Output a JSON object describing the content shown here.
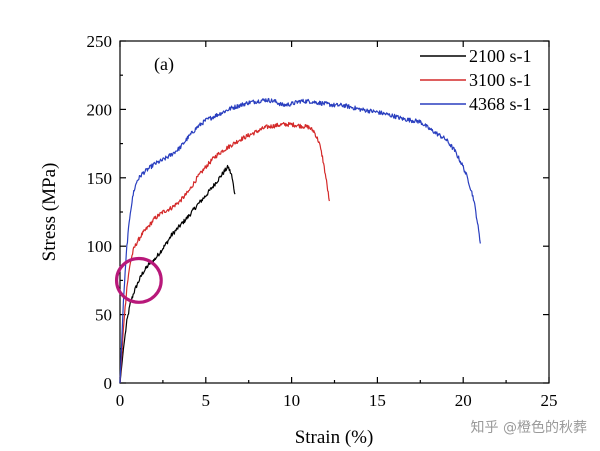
{
  "chart_data": {
    "type": "line",
    "panel_label": "(a)",
    "xlabel": "Strain (%)",
    "ylabel": "Stress (MPa)",
    "xlim": [
      0,
      25
    ],
    "ylim": [
      0,
      250
    ],
    "xticks": [
      0,
      5,
      10,
      15,
      20,
      25
    ],
    "yticks": [
      0,
      50,
      100,
      150,
      200,
      250
    ],
    "grid": false,
    "legend_position": "top-right",
    "series": [
      {
        "name": "2100 s-1",
        "color": "#000000",
        "points": [
          [
            0,
            0
          ],
          [
            0.2,
            25
          ],
          [
            0.4,
            45
          ],
          [
            0.6,
            58
          ],
          [
            0.8,
            66
          ],
          [
            1.0,
            72
          ],
          [
            1.3,
            80
          ],
          [
            1.7,
            87
          ],
          [
            2.0,
            90
          ],
          [
            2.3,
            95
          ],
          [
            2.7,
            102
          ],
          [
            3.0,
            108
          ],
          [
            3.5,
            115
          ],
          [
            4.0,
            122
          ],
          [
            4.5,
            130
          ],
          [
            5.0,
            137
          ],
          [
            5.5,
            145
          ],
          [
            5.8,
            150
          ],
          [
            6.1,
            155
          ],
          [
            6.3,
            158
          ],
          [
            6.5,
            152
          ],
          [
            6.6,
            145
          ],
          [
            6.7,
            138
          ]
        ]
      },
      {
        "name": "3100 s-1",
        "color": "#d42a2a",
        "points": [
          [
            0,
            0
          ],
          [
            0.2,
            40
          ],
          [
            0.4,
            70
          ],
          [
            0.6,
            88
          ],
          [
            0.8,
            98
          ],
          [
            1.0,
            103
          ],
          [
            1.3,
            109
          ],
          [
            1.7,
            115
          ],
          [
            2.0,
            120
          ],
          [
            2.5,
            125
          ],
          [
            3.0,
            128
          ],
          [
            3.5,
            133
          ],
          [
            4.0,
            140
          ],
          [
            4.5,
            150
          ],
          [
            5.0,
            158
          ],
          [
            5.5,
            165
          ],
          [
            6.0,
            170
          ],
          [
            6.5,
            174
          ],
          [
            7.0,
            178
          ],
          [
            7.5,
            181
          ],
          [
            8.0,
            184
          ],
          [
            8.5,
            187
          ],
          [
            9.0,
            188
          ],
          [
            9.5,
            189
          ],
          [
            10.0,
            189
          ],
          [
            10.5,
            188
          ],
          [
            11.0,
            187
          ],
          [
            11.3,
            184
          ],
          [
            11.6,
            176
          ],
          [
            11.8,
            165
          ],
          [
            12.0,
            150
          ],
          [
            12.2,
            133
          ]
        ]
      },
      {
        "name": "4368 s-1",
        "color": "#2a3fbf",
        "points": [
          [
            0,
            0
          ],
          [
            0.2,
            60
          ],
          [
            0.4,
            100
          ],
          [
            0.6,
            125
          ],
          [
            0.8,
            140
          ],
          [
            1.0,
            148
          ],
          [
            1.3,
            153
          ],
          [
            1.7,
            157
          ],
          [
            2.0,
            160
          ],
          [
            2.5,
            163
          ],
          [
            3.0,
            167
          ],
          [
            3.5,
            172
          ],
          [
            4.0,
            180
          ],
          [
            4.5,
            187
          ],
          [
            5.0,
            192
          ],
          [
            5.5,
            195
          ],
          [
            6.0,
            198
          ],
          [
            6.5,
            201
          ],
          [
            7.0,
            203
          ],
          [
            7.5,
            205
          ],
          [
            8.0,
            206
          ],
          [
            8.5,
            207
          ],
          [
            9.0,
            206
          ],
          [
            9.5,
            203
          ],
          [
            10.0,
            204
          ],
          [
            10.5,
            206
          ],
          [
            11.0,
            206
          ],
          [
            11.5,
            205
          ],
          [
            12.0,
            204
          ],
          [
            12.5,
            203
          ],
          [
            13.0,
            203
          ],
          [
            14.0,
            200
          ],
          [
            15.0,
            198
          ],
          [
            16.0,
            195
          ],
          [
            16.5,
            193
          ],
          [
            17.0,
            192
          ],
          [
            17.5,
            191
          ],
          [
            18.0,
            186
          ],
          [
            18.5,
            182
          ],
          [
            19.0,
            178
          ],
          [
            19.5,
            170
          ],
          [
            20.0,
            158
          ],
          [
            20.3,
            148
          ],
          [
            20.6,
            135
          ],
          [
            20.8,
            120
          ],
          [
            21.0,
            102
          ]
        ]
      }
    ],
    "annotation": {
      "shape": "circle",
      "color": "#b8187a",
      "center": [
        1.1,
        75
      ],
      "radius_x_units": 1.3,
      "radius_y_units": 16
    }
  },
  "watermark": "知乎 @橙色的秋葬"
}
